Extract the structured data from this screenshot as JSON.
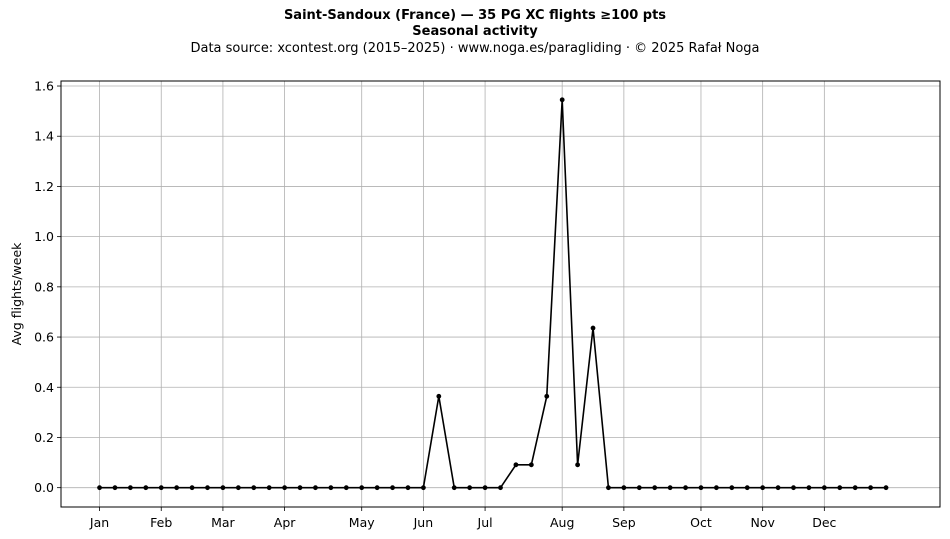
{
  "header": {
    "title_line1": "Saint-Sandoux (France)  —  35 PG XC flights ≥100 pts",
    "title_line2": "Seasonal activity",
    "subtitle": "Data source: xcontest.org (2015–2025)  ·  www.noga.es/paragliding  ·  © 2025 Rafał Noga"
  },
  "chart_data": {
    "type": "line",
    "title": "Saint-Sandoux (France)  —  35 PG XC flights ≥100 pts",
    "subtitle": "Seasonal activity",
    "xlabel": "",
    "ylabel": "Avg flights/week",
    "xlim": [
      -2.5,
      54.5
    ],
    "ylim": [
      -0.077,
      1.62
    ],
    "grid": true,
    "line_color": "#000000",
    "x_ticks": [
      {
        "label": "Jan",
        "x": 0
      },
      {
        "label": "Feb",
        "x": 4
      },
      {
        "label": "Mar",
        "x": 8
      },
      {
        "label": "Apr",
        "x": 12
      },
      {
        "label": "May",
        "x": 17
      },
      {
        "label": "Jun",
        "x": 21
      },
      {
        "label": "Jul",
        "x": 25
      },
      {
        "label": "Aug",
        "x": 30
      },
      {
        "label": "Sep",
        "x": 34
      },
      {
        "label": "Oct",
        "x": 39
      },
      {
        "label": "Nov",
        "x": 43
      },
      {
        "label": "Dec",
        "x": 47
      }
    ],
    "y_ticks": [
      0.0,
      0.2,
      0.4,
      0.6,
      0.8,
      1.0,
      1.2,
      1.4,
      1.6
    ],
    "y_tick_labels": [
      "0.0",
      "0.2",
      "0.4",
      "0.6",
      "0.8",
      "1.0",
      "1.2",
      "1.4",
      "1.6"
    ],
    "series": [
      {
        "x": [
          0,
          1,
          2,
          3,
          4,
          5,
          6,
          7,
          8,
          9,
          10,
          11,
          12,
          13,
          14,
          15,
          16,
          17,
          18,
          19,
          20,
          21,
          22,
          23,
          24,
          25,
          26,
          27,
          28,
          29,
          30,
          31,
          32,
          33,
          34,
          35,
          36,
          37,
          38,
          39,
          40,
          41,
          42,
          43,
          44,
          45,
          46,
          47,
          48,
          49,
          50,
          51
        ],
        "values": [
          0,
          0,
          0,
          0,
          0,
          0,
          0,
          0,
          0,
          0,
          0,
          0,
          0,
          0,
          0,
          0,
          0,
          0,
          0,
          0,
          0,
          0,
          0.364,
          0,
          0,
          0,
          0,
          0.091,
          0.091,
          0.364,
          1.545,
          0.091,
          0.636,
          0,
          0,
          0,
          0,
          0,
          0,
          0,
          0,
          0,
          0,
          0,
          0,
          0,
          0,
          0,
          0,
          0,
          0,
          0
        ]
      }
    ]
  }
}
